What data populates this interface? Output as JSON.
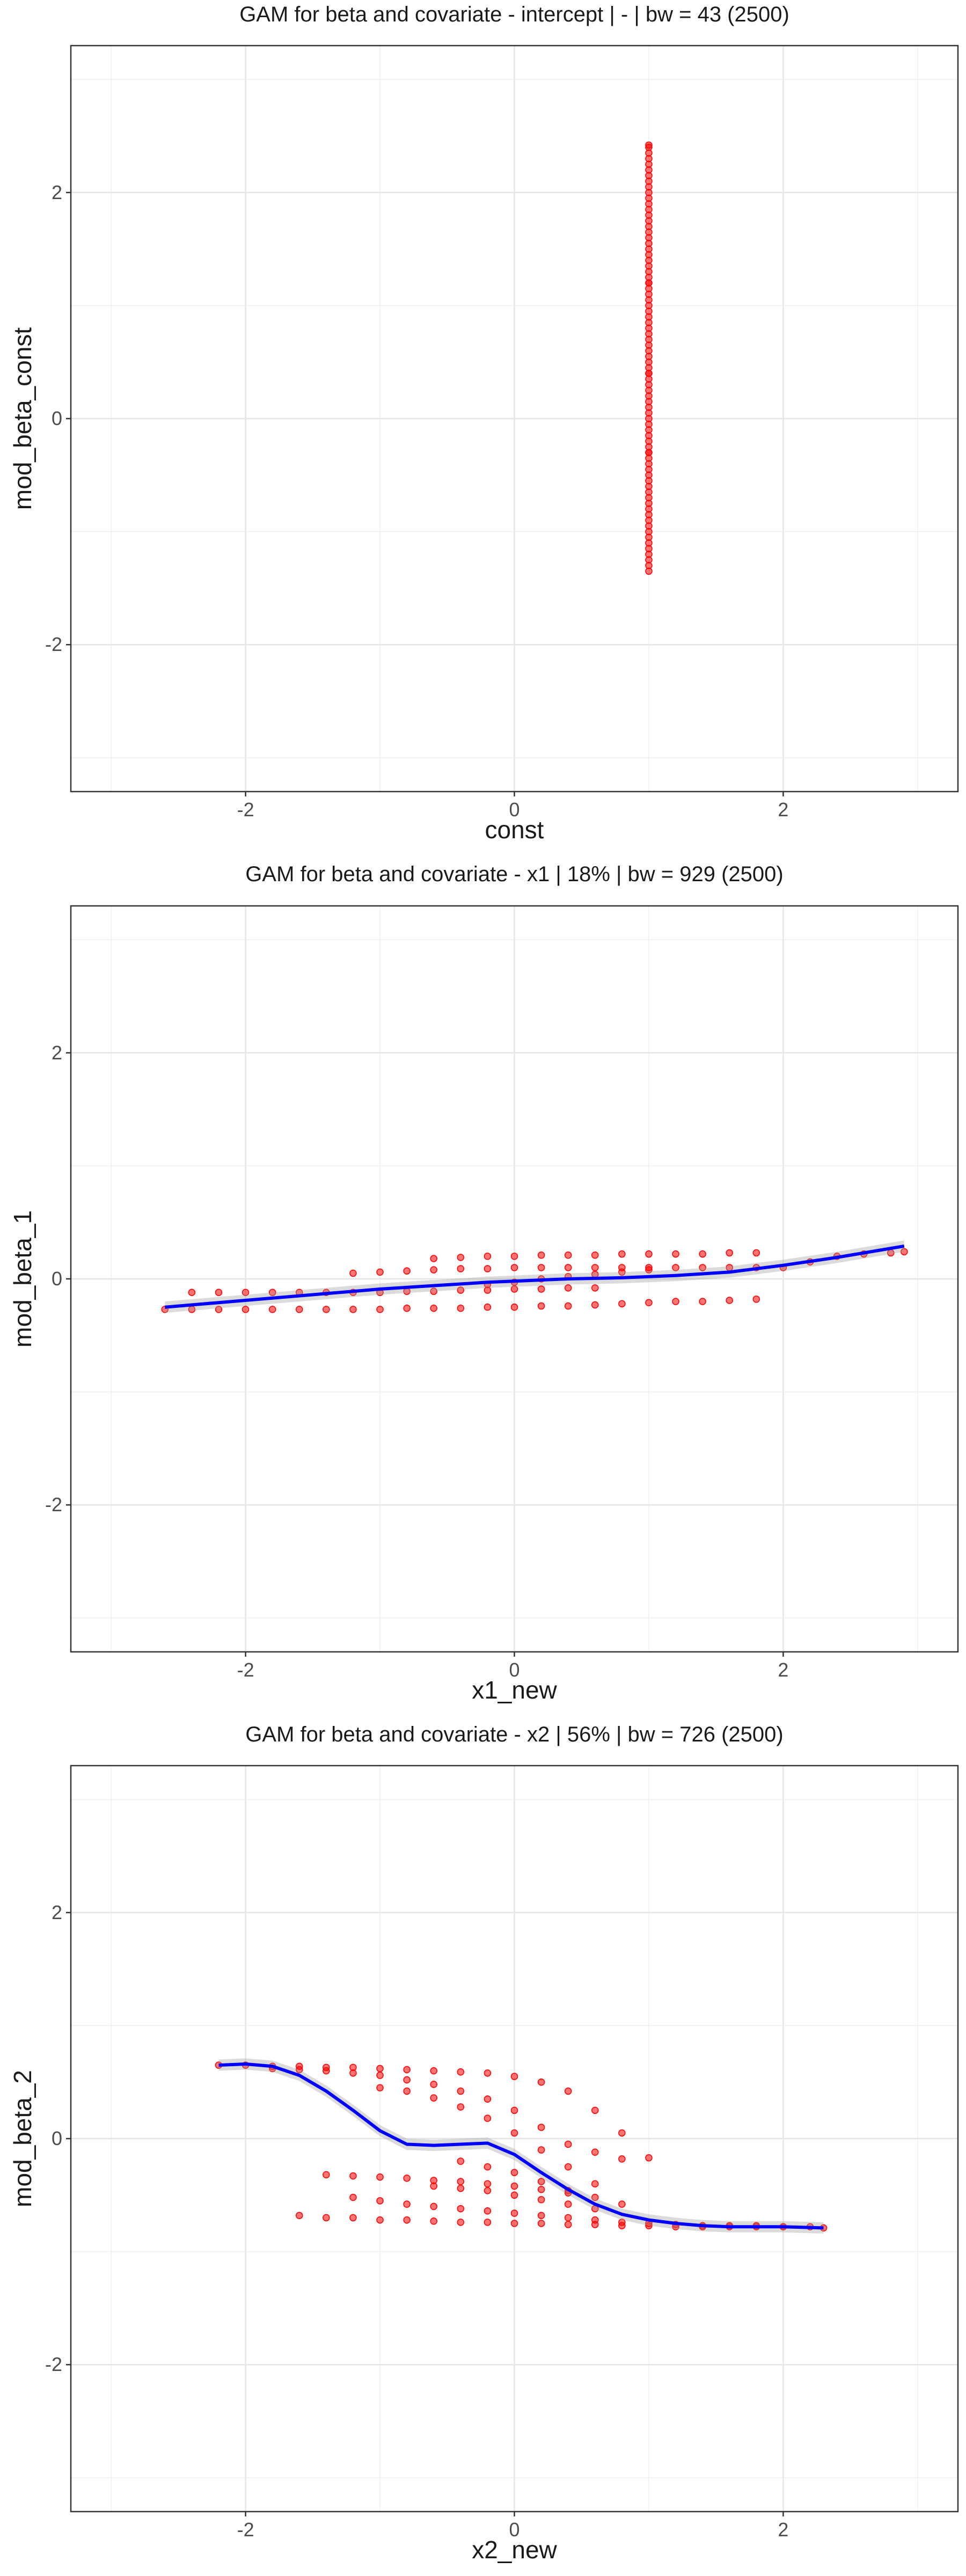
{
  "chart_data": [
    {
      "type": "scatter",
      "title": "GAM for beta and covariate - intercept | - | bw = 43 (2500)",
      "xlabel": "const",
      "ylabel": "mod_beta_const",
      "xlim": [
        -3.3,
        3.3
      ],
      "ylim": [
        -3.3,
        3.3
      ],
      "xticks": [
        -2,
        0,
        2
      ],
      "yticks": [
        -2,
        0,
        2
      ],
      "grid": true,
      "point_color": "#ff0000",
      "smooth_color": "#0000ff",
      "series": [
        {
          "kind": "points",
          "x": [
            1,
            1,
            1,
            1,
            1,
            1,
            1,
            1,
            1,
            1,
            1,
            1,
            1,
            1,
            1,
            1,
            1,
            1,
            1,
            1,
            1,
            1,
            1,
            1,
            1,
            1,
            1,
            1,
            1,
            1,
            1,
            1,
            1,
            1,
            1,
            1,
            1,
            1,
            1,
            1,
            1,
            1,
            1,
            1,
            1,
            1,
            1,
            1,
            1,
            1,
            1,
            1,
            1,
            1,
            1,
            1,
            1,
            1,
            1,
            1,
            1,
            1,
            1,
            1,
            1,
            1,
            1,
            1,
            1,
            1,
            1,
            1,
            1,
            1,
            1,
            1,
            1,
            1,
            1,
            1
          ],
          "y": [
            -1.35,
            -1.3,
            -1.25,
            -1.2,
            -1.15,
            -1.1,
            -1.05,
            -1.0,
            -0.95,
            -0.9,
            -0.85,
            -0.8,
            -0.75,
            -0.7,
            -0.65,
            -0.6,
            -0.55,
            -0.5,
            -0.45,
            -0.4,
            -0.35,
            -0.3,
            -0.25,
            -0.2,
            -0.15,
            -0.1,
            -0.05,
            0.0,
            0.05,
            0.1,
            0.15,
            0.2,
            0.25,
            0.3,
            0.35,
            0.4,
            0.45,
            0.5,
            0.55,
            0.6,
            0.65,
            0.7,
            0.75,
            0.8,
            0.85,
            0.9,
            0.95,
            1.0,
            1.05,
            1.1,
            1.15,
            1.2,
            1.25,
            1.3,
            1.35,
            1.4,
            1.45,
            1.5,
            1.55,
            1.6,
            1.65,
            1.7,
            1.75,
            1.8,
            1.85,
            1.9,
            1.95,
            2.0,
            2.05,
            2.1,
            2.15,
            2.2,
            2.25,
            2.3,
            2.35,
            2.4,
            2.42,
            -0.3,
            0.4,
            1.2
          ]
        }
      ]
    },
    {
      "type": "scatter",
      "title": "GAM for beta and covariate - x1 | 18% | bw = 929 (2500)",
      "xlabel": "x1_new",
      "ylabel": "mod_beta_1",
      "xlim": [
        -3.3,
        3.3
      ],
      "ylim": [
        -3.3,
        3.3
      ],
      "xticks": [
        -2,
        0,
        2
      ],
      "yticks": [
        -2,
        0,
        2
      ],
      "grid": true,
      "point_color": "#ff0000",
      "smooth_color": "#0000ff",
      "series": [
        {
          "kind": "points",
          "x": [
            -2.6,
            -2.4,
            -2.2,
            -2.0,
            -1.8,
            -1.6,
            -1.4,
            -1.2,
            -1.0,
            -0.8,
            -0.6,
            -0.4,
            -0.2,
            0.0,
            0.2,
            0.4,
            0.6,
            0.8,
            1.0,
            1.2,
            1.4,
            1.6,
            1.8,
            -2.4,
            -2.2,
            -2.0,
            -1.8,
            -1.6,
            -1.4,
            -1.2,
            -1.0,
            -0.8,
            -0.6,
            -0.4,
            -0.2,
            0.0,
            0.2,
            0.4,
            0.6,
            -1.2,
            -1.0,
            -0.8,
            -0.6,
            -0.4,
            -0.2,
            0.0,
            0.2,
            0.4,
            0.6,
            0.8,
            1.0,
            1.2,
            1.4,
            1.6,
            1.8,
            2.0,
            2.2,
            2.4,
            2.6,
            2.8,
            2.9,
            -0.6,
            -0.4,
            -0.2,
            0.0,
            0.2,
            0.4,
            0.6,
            0.8,
            1.0,
            1.2,
            1.4,
            1.6,
            1.8,
            -0.2,
            0.0,
            0.2,
            0.4,
            0.6,
            0.8,
            1.0
          ],
          "y": [
            -0.27,
            -0.27,
            -0.27,
            -0.27,
            -0.27,
            -0.27,
            -0.27,
            -0.27,
            -0.27,
            -0.26,
            -0.26,
            -0.26,
            -0.25,
            -0.25,
            -0.24,
            -0.24,
            -0.23,
            -0.22,
            -0.21,
            -0.2,
            -0.2,
            -0.19,
            -0.18,
            -0.12,
            -0.12,
            -0.12,
            -0.12,
            -0.12,
            -0.12,
            -0.12,
            -0.12,
            -0.11,
            -0.11,
            -0.1,
            -0.1,
            -0.09,
            -0.09,
            -0.08,
            -0.08,
            0.05,
            0.06,
            0.07,
            0.08,
            0.09,
            0.09,
            0.1,
            0.1,
            0.1,
            0.1,
            0.1,
            0.1,
            0.1,
            0.1,
            0.1,
            0.1,
            0.1,
            0.15,
            0.2,
            0.22,
            0.23,
            0.24,
            0.18,
            0.19,
            0.2,
            0.2,
            0.21,
            0.21,
            0.21,
            0.22,
            0.22,
            0.22,
            0.22,
            0.23,
            0.23,
            -0.05,
            -0.03,
            0.0,
            0.02,
            0.04,
            0.06,
            0.08
          ]
        },
        {
          "kind": "smooth",
          "x": [
            -2.6,
            -2.2,
            -1.8,
            -1.4,
            -1.0,
            -0.6,
            -0.2,
            0.0,
            0.4,
            0.8,
            1.2,
            1.6,
            2.0,
            2.4,
            2.9
          ],
          "y": [
            -0.25,
            -0.21,
            -0.17,
            -0.13,
            -0.09,
            -0.06,
            -0.03,
            -0.02,
            0.0,
            0.01,
            0.03,
            0.06,
            0.12,
            0.19,
            0.29
          ]
        }
      ]
    },
    {
      "type": "scatter",
      "title": "GAM for beta and covariate - x2 | 56% | bw = 726 (2500)",
      "xlabel": "x2_new",
      "ylabel": "mod_beta_2",
      "xlim": [
        -3.3,
        3.3
      ],
      "ylim": [
        -3.3,
        3.3
      ],
      "xticks": [
        -2,
        0,
        2
      ],
      "yticks": [
        -2,
        0,
        2
      ],
      "grid": true,
      "point_color": "#ff0000",
      "smooth_color": "#0000ff",
      "series": [
        {
          "kind": "points",
          "x": [
            -2.2,
            -2.0,
            -1.8,
            -1.6,
            -1.4,
            -1.2,
            -1.0,
            -0.8,
            -0.6,
            -0.4,
            -0.2,
            0.0,
            0.2,
            0.4,
            0.6,
            0.8,
            1.0,
            -1.8,
            -1.6,
            -1.4,
            -1.2,
            -1.0,
            -0.8,
            -0.6,
            -0.4,
            -0.2,
            0.0,
            0.2,
            0.4,
            0.6,
            0.8,
            -1.0,
            -0.8,
            -0.6,
            -0.4,
            -0.2,
            0.0,
            0.2,
            0.4,
            0.6,
            -1.2,
            -1.0,
            -0.8,
            -0.6,
            -0.4,
            -0.2,
            0.0,
            0.2,
            0.4,
            0.6,
            0.8,
            1.0,
            1.2,
            1.4,
            1.6,
            1.8,
            2.0,
            2.2,
            2.3,
            -1.6,
            -1.4,
            -1.2,
            -1.0,
            -0.8,
            -0.6,
            -0.4,
            -0.2,
            0.0,
            0.2,
            0.4,
            0.6,
            0.8,
            1.0,
            1.2,
            1.4,
            1.6,
            1.8,
            2.0,
            -1.4,
            -1.2,
            -1.0,
            -0.8,
            -0.6,
            -0.4,
            -0.2,
            0.0,
            0.2,
            0.4,
            0.6,
            0.8,
            -0.6,
            -0.4,
            -0.2,
            0.0,
            0.2,
            0.4,
            0.6,
            -0.4,
            -0.2,
            0.0,
            0.2,
            0.4
          ],
          "y": [
            0.65,
            0.65,
            0.64,
            0.64,
            0.63,
            0.63,
            0.62,
            0.61,
            0.6,
            0.59,
            0.58,
            0.55,
            0.5,
            0.42,
            0.25,
            0.05,
            -0.17,
            0.62,
            0.61,
            0.6,
            0.58,
            0.56,
            0.52,
            0.48,
            0.42,
            0.35,
            0.25,
            0.1,
            -0.05,
            -0.12,
            -0.18,
            0.45,
            0.42,
            0.36,
            0.28,
            0.18,
            0.05,
            -0.1,
            -0.25,
            -0.4,
            -0.52,
            -0.55,
            -0.58,
            -0.6,
            -0.62,
            -0.64,
            -0.66,
            -0.68,
            -0.7,
            -0.72,
            -0.74,
            -0.75,
            -0.76,
            -0.77,
            -0.77,
            -0.77,
            -0.78,
            -0.78,
            -0.79,
            -0.68,
            -0.7,
            -0.7,
            -0.72,
            -0.72,
            -0.73,
            -0.74,
            -0.74,
            -0.75,
            -0.75,
            -0.76,
            -0.76,
            -0.77,
            -0.77,
            -0.78,
            -0.78,
            -0.78,
            -0.78,
            -0.78,
            -0.32,
            -0.33,
            -0.34,
            -0.35,
            -0.37,
            -0.38,
            -0.4,
            -0.42,
            -0.45,
            -0.48,
            -0.52,
            -0.58,
            -0.42,
            -0.44,
            -0.46,
            -0.5,
            -0.54,
            -0.58,
            -0.62,
            -0.2,
            -0.25,
            -0.3,
            -0.38,
            -0.46
          ]
        },
        {
          "kind": "smooth",
          "x": [
            -2.2,
            -2.0,
            -1.8,
            -1.6,
            -1.4,
            -1.2,
            -1.0,
            -0.8,
            -0.6,
            -0.4,
            -0.2,
            0.0,
            0.2,
            0.4,
            0.6,
            0.8,
            1.0,
            1.2,
            1.4,
            1.6,
            1.8,
            2.0,
            2.3
          ],
          "y": [
            0.65,
            0.66,
            0.64,
            0.56,
            0.42,
            0.25,
            0.07,
            -0.05,
            -0.06,
            -0.05,
            -0.04,
            -0.14,
            -0.3,
            -0.45,
            -0.58,
            -0.67,
            -0.72,
            -0.75,
            -0.77,
            -0.78,
            -0.78,
            -0.78,
            -0.79
          ]
        }
      ]
    }
  ]
}
